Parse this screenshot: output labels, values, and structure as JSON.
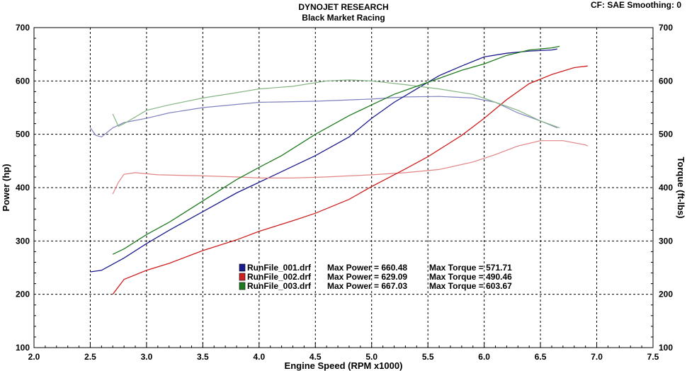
{
  "header": {
    "title": "DYNOJET RESEARCH",
    "subtitle": "Black Market Racing",
    "cf_info": "CF: SAE  Smoothing: 0"
  },
  "chart_data": {
    "type": "line",
    "xlabel": "Engine Speed (RPM x1000)",
    "ylabel_left": "Power (hp)",
    "ylabel_right": "Torque (ft-lbs)",
    "xlim": [
      2.0,
      7.5
    ],
    "ylim_left": [
      100,
      700
    ],
    "ylim_right": [
      100,
      700
    ],
    "x_ticks": [
      "2.0",
      "2.5",
      "3.0",
      "3.5",
      "4.0",
      "4.5",
      "5.0",
      "5.5",
      "6.0",
      "6.5",
      "7.0",
      "7.5"
    ],
    "y_ticks": [
      "100",
      "200",
      "300",
      "400",
      "500",
      "600",
      "700"
    ],
    "grid": true,
    "legend_position": "bottom-center",
    "series": [
      {
        "name": "RunFile_001.drf",
        "max_power_label": "Max Power = 660.48",
        "max_torque_label": "Max Torque = 571.71",
        "color": "#1a1a8c",
        "power": [
          [
            2.5,
            242
          ],
          [
            2.6,
            245
          ],
          [
            2.8,
            268
          ],
          [
            3.0,
            295
          ],
          [
            3.2,
            320
          ],
          [
            3.5,
            355
          ],
          [
            3.8,
            390
          ],
          [
            4.0,
            410
          ],
          [
            4.2,
            430
          ],
          [
            4.5,
            460
          ],
          [
            4.8,
            495
          ],
          [
            5.0,
            530
          ],
          [
            5.2,
            560
          ],
          [
            5.4,
            585
          ],
          [
            5.6,
            610
          ],
          [
            5.8,
            628
          ],
          [
            6.0,
            645
          ],
          [
            6.2,
            652
          ],
          [
            6.4,
            656
          ],
          [
            6.6,
            658
          ],
          [
            6.65,
            660
          ]
        ],
        "torque": [
          [
            2.5,
            512
          ],
          [
            2.55,
            498
          ],
          [
            2.6,
            495
          ],
          [
            2.7,
            512
          ],
          [
            2.8,
            522
          ],
          [
            3.0,
            530
          ],
          [
            3.2,
            540
          ],
          [
            3.5,
            550
          ],
          [
            3.8,
            556
          ],
          [
            4.0,
            560
          ],
          [
            4.5,
            562
          ],
          [
            5.0,
            566
          ],
          [
            5.3,
            570
          ],
          [
            5.6,
            571
          ],
          [
            5.9,
            568
          ],
          [
            6.1,
            560
          ],
          [
            6.3,
            540
          ],
          [
            6.5,
            525
          ],
          [
            6.65,
            512
          ]
        ]
      },
      {
        "name": "RunFile_002.drf",
        "max_power_label": "Max Power = 629.09",
        "max_torque_label": "Max Torque = 490.46",
        "color": "#cc1f1f",
        "power": [
          [
            2.7,
            200
          ],
          [
            2.8,
            228
          ],
          [
            3.0,
            245
          ],
          [
            3.2,
            258
          ],
          [
            3.5,
            282
          ],
          [
            3.8,
            302
          ],
          [
            4.0,
            318
          ],
          [
            4.3,
            338
          ],
          [
            4.5,
            352
          ],
          [
            4.8,
            378
          ],
          [
            5.0,
            402
          ],
          [
            5.3,
            435
          ],
          [
            5.5,
            458
          ],
          [
            5.8,
            498
          ],
          [
            6.0,
            530
          ],
          [
            6.2,
            565
          ],
          [
            6.4,
            595
          ],
          [
            6.6,
            612
          ],
          [
            6.8,
            625
          ],
          [
            6.92,
            628
          ]
        ],
        "torque": [
          [
            2.7,
            388
          ],
          [
            2.75,
            410
          ],
          [
            2.8,
            425
          ],
          [
            2.9,
            428
          ],
          [
            3.1,
            424
          ],
          [
            3.5,
            422
          ],
          [
            3.8,
            420
          ],
          [
            4.0,
            418
          ],
          [
            4.3,
            418
          ],
          [
            4.6,
            420
          ],
          [
            5.0,
            424
          ],
          [
            5.3,
            428
          ],
          [
            5.6,
            434
          ],
          [
            5.9,
            448
          ],
          [
            6.1,
            462
          ],
          [
            6.3,
            478
          ],
          [
            6.5,
            488
          ],
          [
            6.7,
            488
          ],
          [
            6.9,
            480
          ],
          [
            6.92,
            478
          ]
        ]
      },
      {
        "name": "RunFile_003.drf",
        "max_power_label": "Max Power = 667.03",
        "max_torque_label": "Max Torque = 603.67",
        "color": "#1f7a1f",
        "power": [
          [
            2.7,
            275
          ],
          [
            2.8,
            285
          ],
          [
            3.0,
            312
          ],
          [
            3.2,
            335
          ],
          [
            3.5,
            375
          ],
          [
            3.8,
            415
          ],
          [
            4.0,
            438
          ],
          [
            4.2,
            460
          ],
          [
            4.5,
            500
          ],
          [
            4.8,
            535
          ],
          [
            5.0,
            555
          ],
          [
            5.2,
            575
          ],
          [
            5.4,
            590
          ],
          [
            5.6,
            605
          ],
          [
            5.8,
            620
          ],
          [
            6.0,
            632
          ],
          [
            6.2,
            648
          ],
          [
            6.4,
            658
          ],
          [
            6.6,
            662
          ],
          [
            6.67,
            665
          ]
        ],
        "torque": [
          [
            2.7,
            538
          ],
          [
            2.75,
            515
          ],
          [
            2.8,
            520
          ],
          [
            3.0,
            545
          ],
          [
            3.2,
            555
          ],
          [
            3.5,
            568
          ],
          [
            3.8,
            578
          ],
          [
            4.0,
            585
          ],
          [
            4.3,
            590
          ],
          [
            4.6,
            600
          ],
          [
            4.8,
            602
          ],
          [
            5.0,
            600
          ],
          [
            5.3,
            593
          ],
          [
            5.6,
            585
          ],
          [
            5.9,
            575
          ],
          [
            6.1,
            560
          ],
          [
            6.3,
            545
          ],
          [
            6.5,
            525
          ],
          [
            6.67,
            512
          ]
        ]
      }
    ]
  }
}
